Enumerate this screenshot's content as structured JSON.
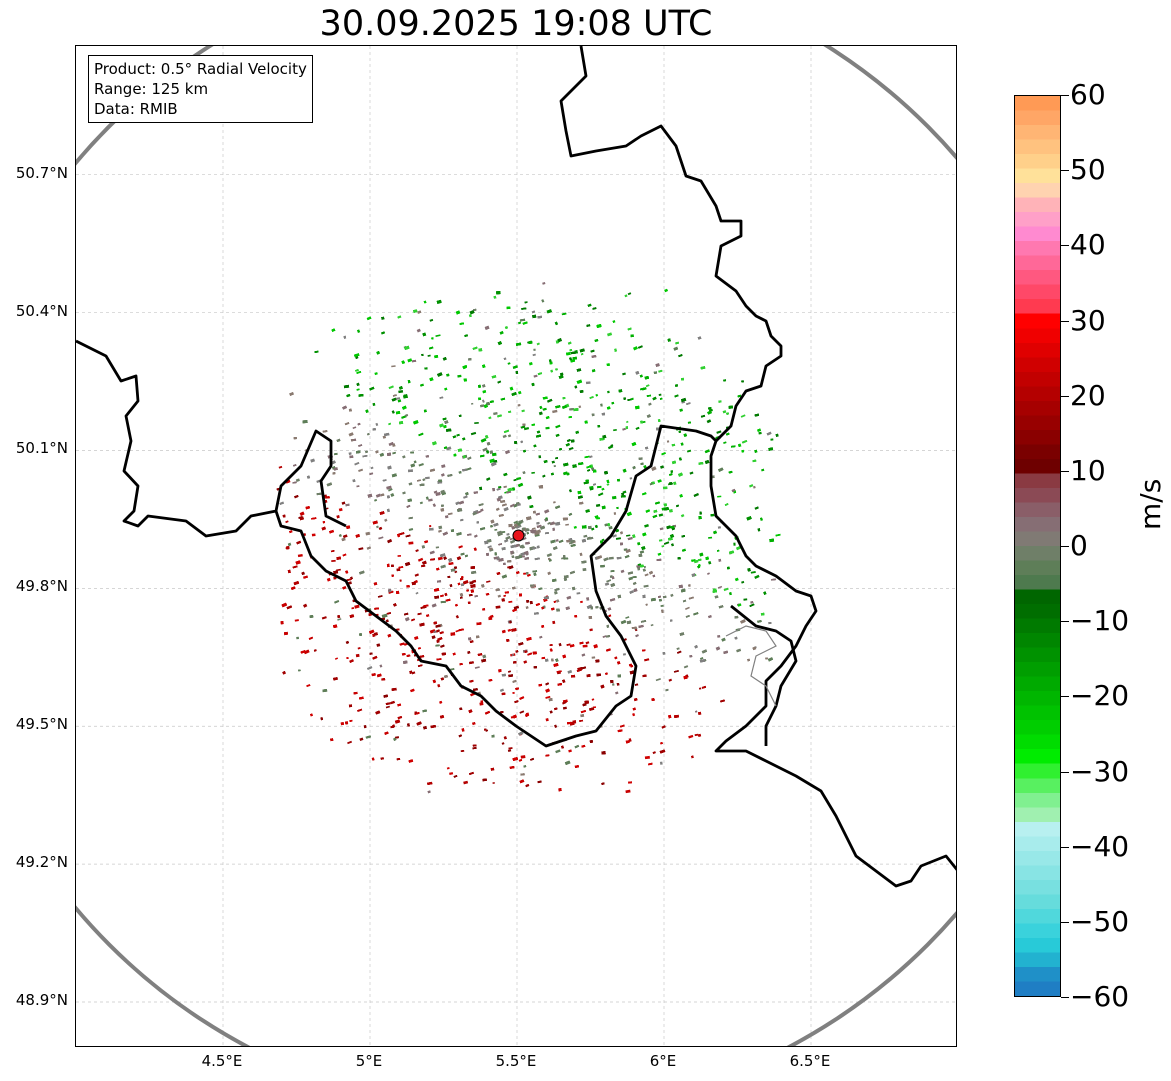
{
  "title": "30.09.2025 19:08 UTC",
  "info_box": {
    "product": "Product: 0.5° Radial Velocity",
    "range": "Range: 125 km",
    "source": "Data: RMIB"
  },
  "axes": {
    "lat_labels": [
      "50.7°N",
      "50.4°N",
      "50.1°N",
      "49.8°N",
      "49.5°N",
      "49.2°N",
      "48.9°N"
    ],
    "lat_values": [
      50.7,
      50.4,
      50.1,
      49.8,
      49.5,
      49.2,
      48.9
    ],
    "lon_labels": [
      "4.5°E",
      "5°E",
      "5.5°E",
      "6°E",
      "6.5°E"
    ],
    "lon_values": [
      4.5,
      5.0,
      5.5,
      6.0,
      6.5
    ],
    "lon_range": [
      4.0,
      7.0
    ],
    "lat_range": [
      48.8,
      50.98
    ]
  },
  "radar": {
    "lon": 5.505,
    "lat": 49.915,
    "range_km": 125,
    "marker_color": "#e8141c"
  },
  "colorbar": {
    "unit": "m/s",
    "tick_labels": [
      "60",
      "50",
      "40",
      "30",
      "20",
      "10",
      "0",
      "−10",
      "−20",
      "−30",
      "−40",
      "−50",
      "−60"
    ],
    "tick_values": [
      60,
      50,
      40,
      30,
      20,
      10,
      0,
      -10,
      -20,
      -30,
      -40,
      -50,
      -60
    ],
    "colors_top_to_bottom": [
      "#ff9a55",
      "#ffa666",
      "#ffb574",
      "#ffc27f",
      "#ffd08a",
      "#ffe19a",
      "#ffd3b0",
      "#ffb3b8",
      "#ffa0c8",
      "#ff8ad0",
      "#ff78b0",
      "#ff6898",
      "#ff5880",
      "#ff4868",
      "#ff3a50",
      "#ff0000",
      "#f00000",
      "#e00000",
      "#d00000",
      "#c20000",
      "#b40000",
      "#a60000",
      "#980000",
      "#8a0000",
      "#7a0000",
      "#6e0000",
      "#8a3a42",
      "#8b4a55",
      "#8a5e68",
      "#866e74",
      "#807a74",
      "#6f7f68",
      "#5e7e58",
      "#4e7a4e",
      "#006600",
      "#006e00",
      "#007a00",
      "#008600",
      "#009200",
      "#009e00",
      "#00aa00",
      "#00b600",
      "#00c200",
      "#00ce00",
      "#00dc00",
      "#00ec00",
      "#30f030",
      "#58f060",
      "#80f090",
      "#a0f0b0",
      "#b8f0f0",
      "#a8ecec",
      "#98e8e8",
      "#88e4e4",
      "#78e0e0",
      "#66dcdc",
      "#50d8dc",
      "#3ad2dc",
      "#28cad8",
      "#22b2d0",
      "#1f90c8",
      "#1f7ec4"
    ]
  },
  "echo_colors": {
    "approaching_green": [
      "#00b000",
      "#00c800",
      "#009000",
      "#30d030",
      "#007a00"
    ],
    "near_zero_grey": [
      "#6f7f68",
      "#808080",
      "#866e74",
      "#8a7a70",
      "#5e7e58"
    ],
    "receding_red": [
      "#b40000",
      "#a00000",
      "#c80000",
      "#8a0000",
      "#d00000"
    ]
  }
}
